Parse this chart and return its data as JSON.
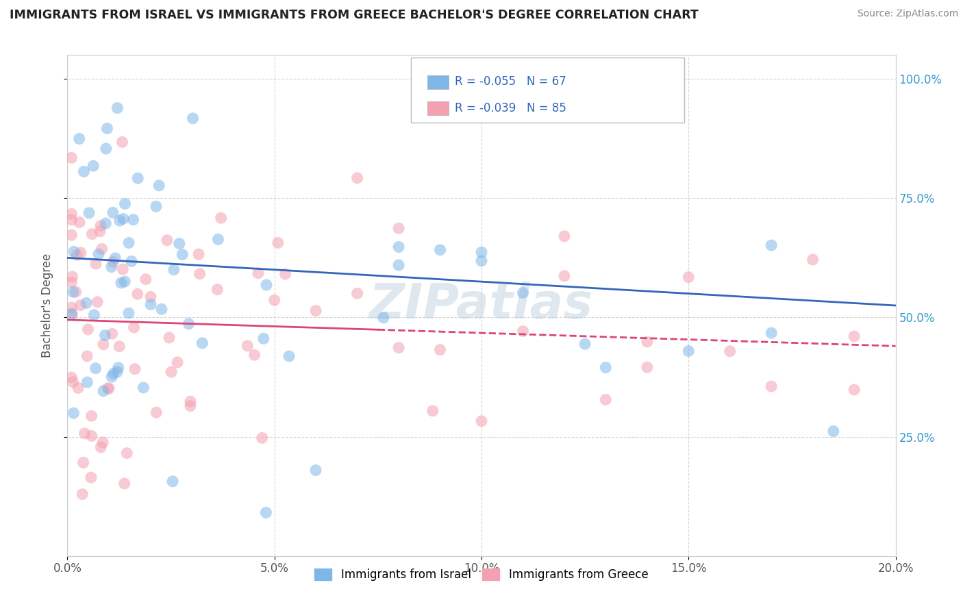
{
  "title": "IMMIGRANTS FROM ISRAEL VS IMMIGRANTS FROM GREECE BACHELOR'S DEGREE CORRELATION CHART",
  "source": "Source: ZipAtlas.com",
  "ylabel": "Bachelor's Degree",
  "legend_labels": [
    "Immigrants from Israel",
    "Immigrants from Greece"
  ],
  "israel_R": -0.055,
  "israel_N": 67,
  "greece_R": -0.039,
  "greece_N": 85,
  "color_israel": "#7EB6E8",
  "color_greece": "#F4A0B0",
  "color_israel_line": "#3366BB",
  "color_greece_line": "#DD4477",
  "xlim": [
    0.0,
    0.2
  ],
  "ylim": [
    0.0,
    1.05
  ],
  "xtick_labels": [
    "0.0%",
    "5.0%",
    "10.0%",
    "15.0%",
    "20.0%"
  ],
  "xtick_vals": [
    0.0,
    0.05,
    0.1,
    0.15,
    0.2
  ],
  "ytick_right_labels": [
    "25.0%",
    "50.0%",
    "75.0%",
    "100.0%"
  ],
  "ytick_right_vals": [
    0.25,
    0.5,
    0.75,
    1.0
  ],
  "watermark": "ZIPatlas",
  "background_color": "#FFFFFF",
  "grid_color": "#CCCCCC",
  "legend_text_color": "#3366BB"
}
